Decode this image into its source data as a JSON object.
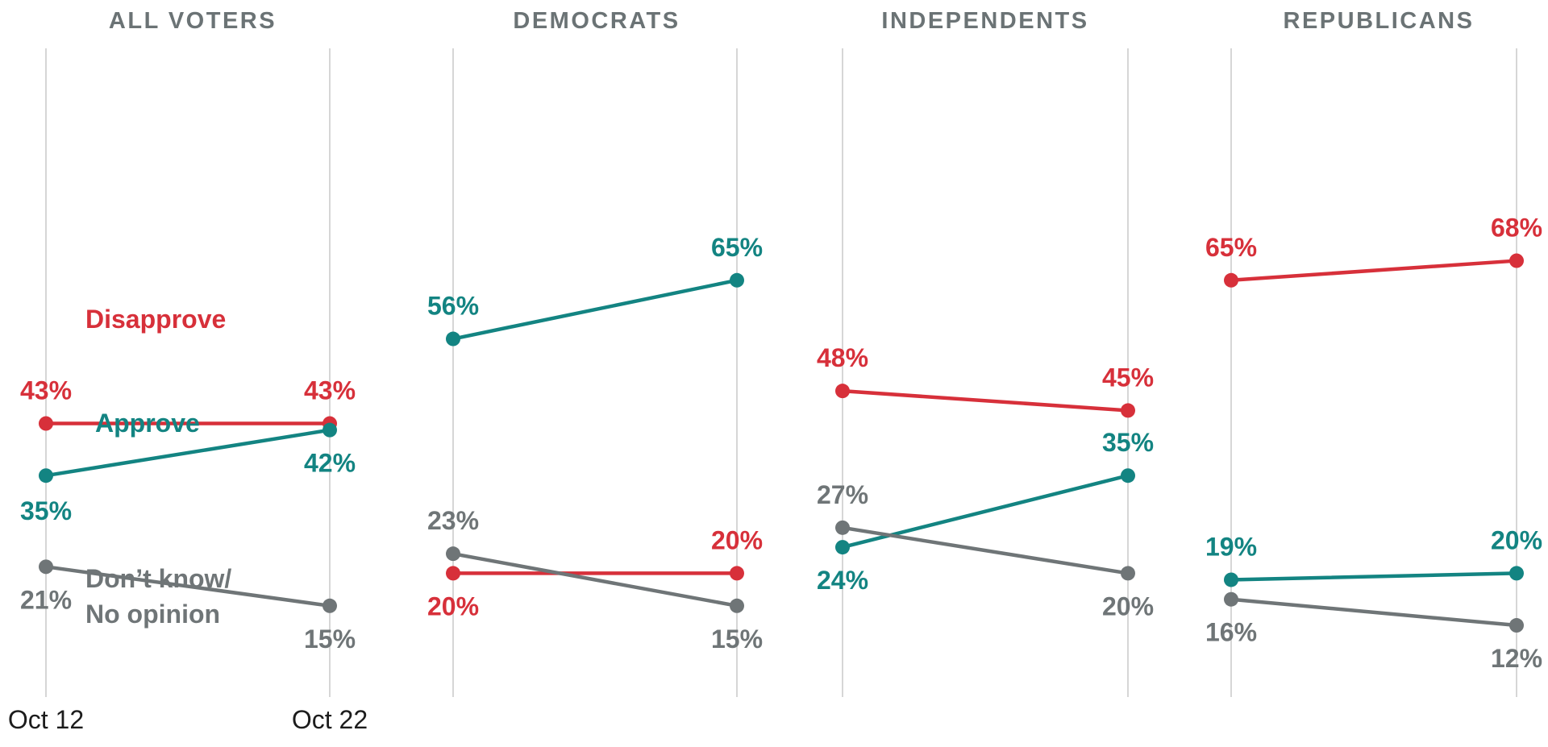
{
  "chart_data": {
    "type": "line",
    "x": [
      "Oct 12",
      "Oct 22"
    ],
    "colors": {
      "Approve": "#138482",
      "Disapprove": "#d7303a",
      "Don't know/No opinion": "#6f7577"
    },
    "panels": [
      {
        "title": "ALL VOTERS",
        "series": [
          {
            "name": "Disapprove",
            "values": [
              43,
              43
            ],
            "labels": [
              "43%",
              "43%"
            ]
          },
          {
            "name": "Approve",
            "values": [
              35,
              42
            ],
            "labels": [
              "35%",
              "42%"
            ]
          },
          {
            "name": "Don't know/No opinion",
            "values": [
              21,
              15
            ],
            "labels": [
              "21%",
              "15%"
            ]
          }
        ],
        "series_labels": {
          "Disapprove": "Disapprove",
          "Approve": "Approve",
          "Don't know/No opinion": [
            "Don’t know/",
            "No opinion"
          ]
        }
      },
      {
        "title": "DEMOCRATS",
        "series": [
          {
            "name": "Approve",
            "values": [
              56,
              65
            ],
            "labels": [
              "56%",
              "65%"
            ]
          },
          {
            "name": "Disapprove",
            "values": [
              20,
              20
            ],
            "labels": [
              "20%",
              "20%"
            ]
          },
          {
            "name": "Don't know/No opinion",
            "values": [
              23,
              15
            ],
            "labels": [
              "23%",
              "15%"
            ]
          }
        ]
      },
      {
        "title": "INDEPENDENTS",
        "series": [
          {
            "name": "Disapprove",
            "values": [
              48,
              45
            ],
            "labels": [
              "48%",
              "45%"
            ]
          },
          {
            "name": "Approve",
            "values": [
              24,
              35
            ],
            "labels": [
              "24%",
              "35%"
            ]
          },
          {
            "name": "Don't know/No opinion",
            "values": [
              27,
              20
            ],
            "labels": [
              "27%",
              "20%"
            ]
          }
        ]
      },
      {
        "title": "REPUBLICANS",
        "series": [
          {
            "name": "Disapprove",
            "values": [
              65,
              68
            ],
            "labels": [
              "65%",
              "68%"
            ]
          },
          {
            "name": "Approve",
            "values": [
              19,
              20
            ],
            "labels": [
              "19%",
              "20%"
            ]
          },
          {
            "name": "Don't know/No opinion",
            "values": [
              16,
              12
            ],
            "labels": [
              "16%",
              "12%"
            ]
          }
        ]
      }
    ],
    "grid": "vertical",
    "legend": "none"
  }
}
